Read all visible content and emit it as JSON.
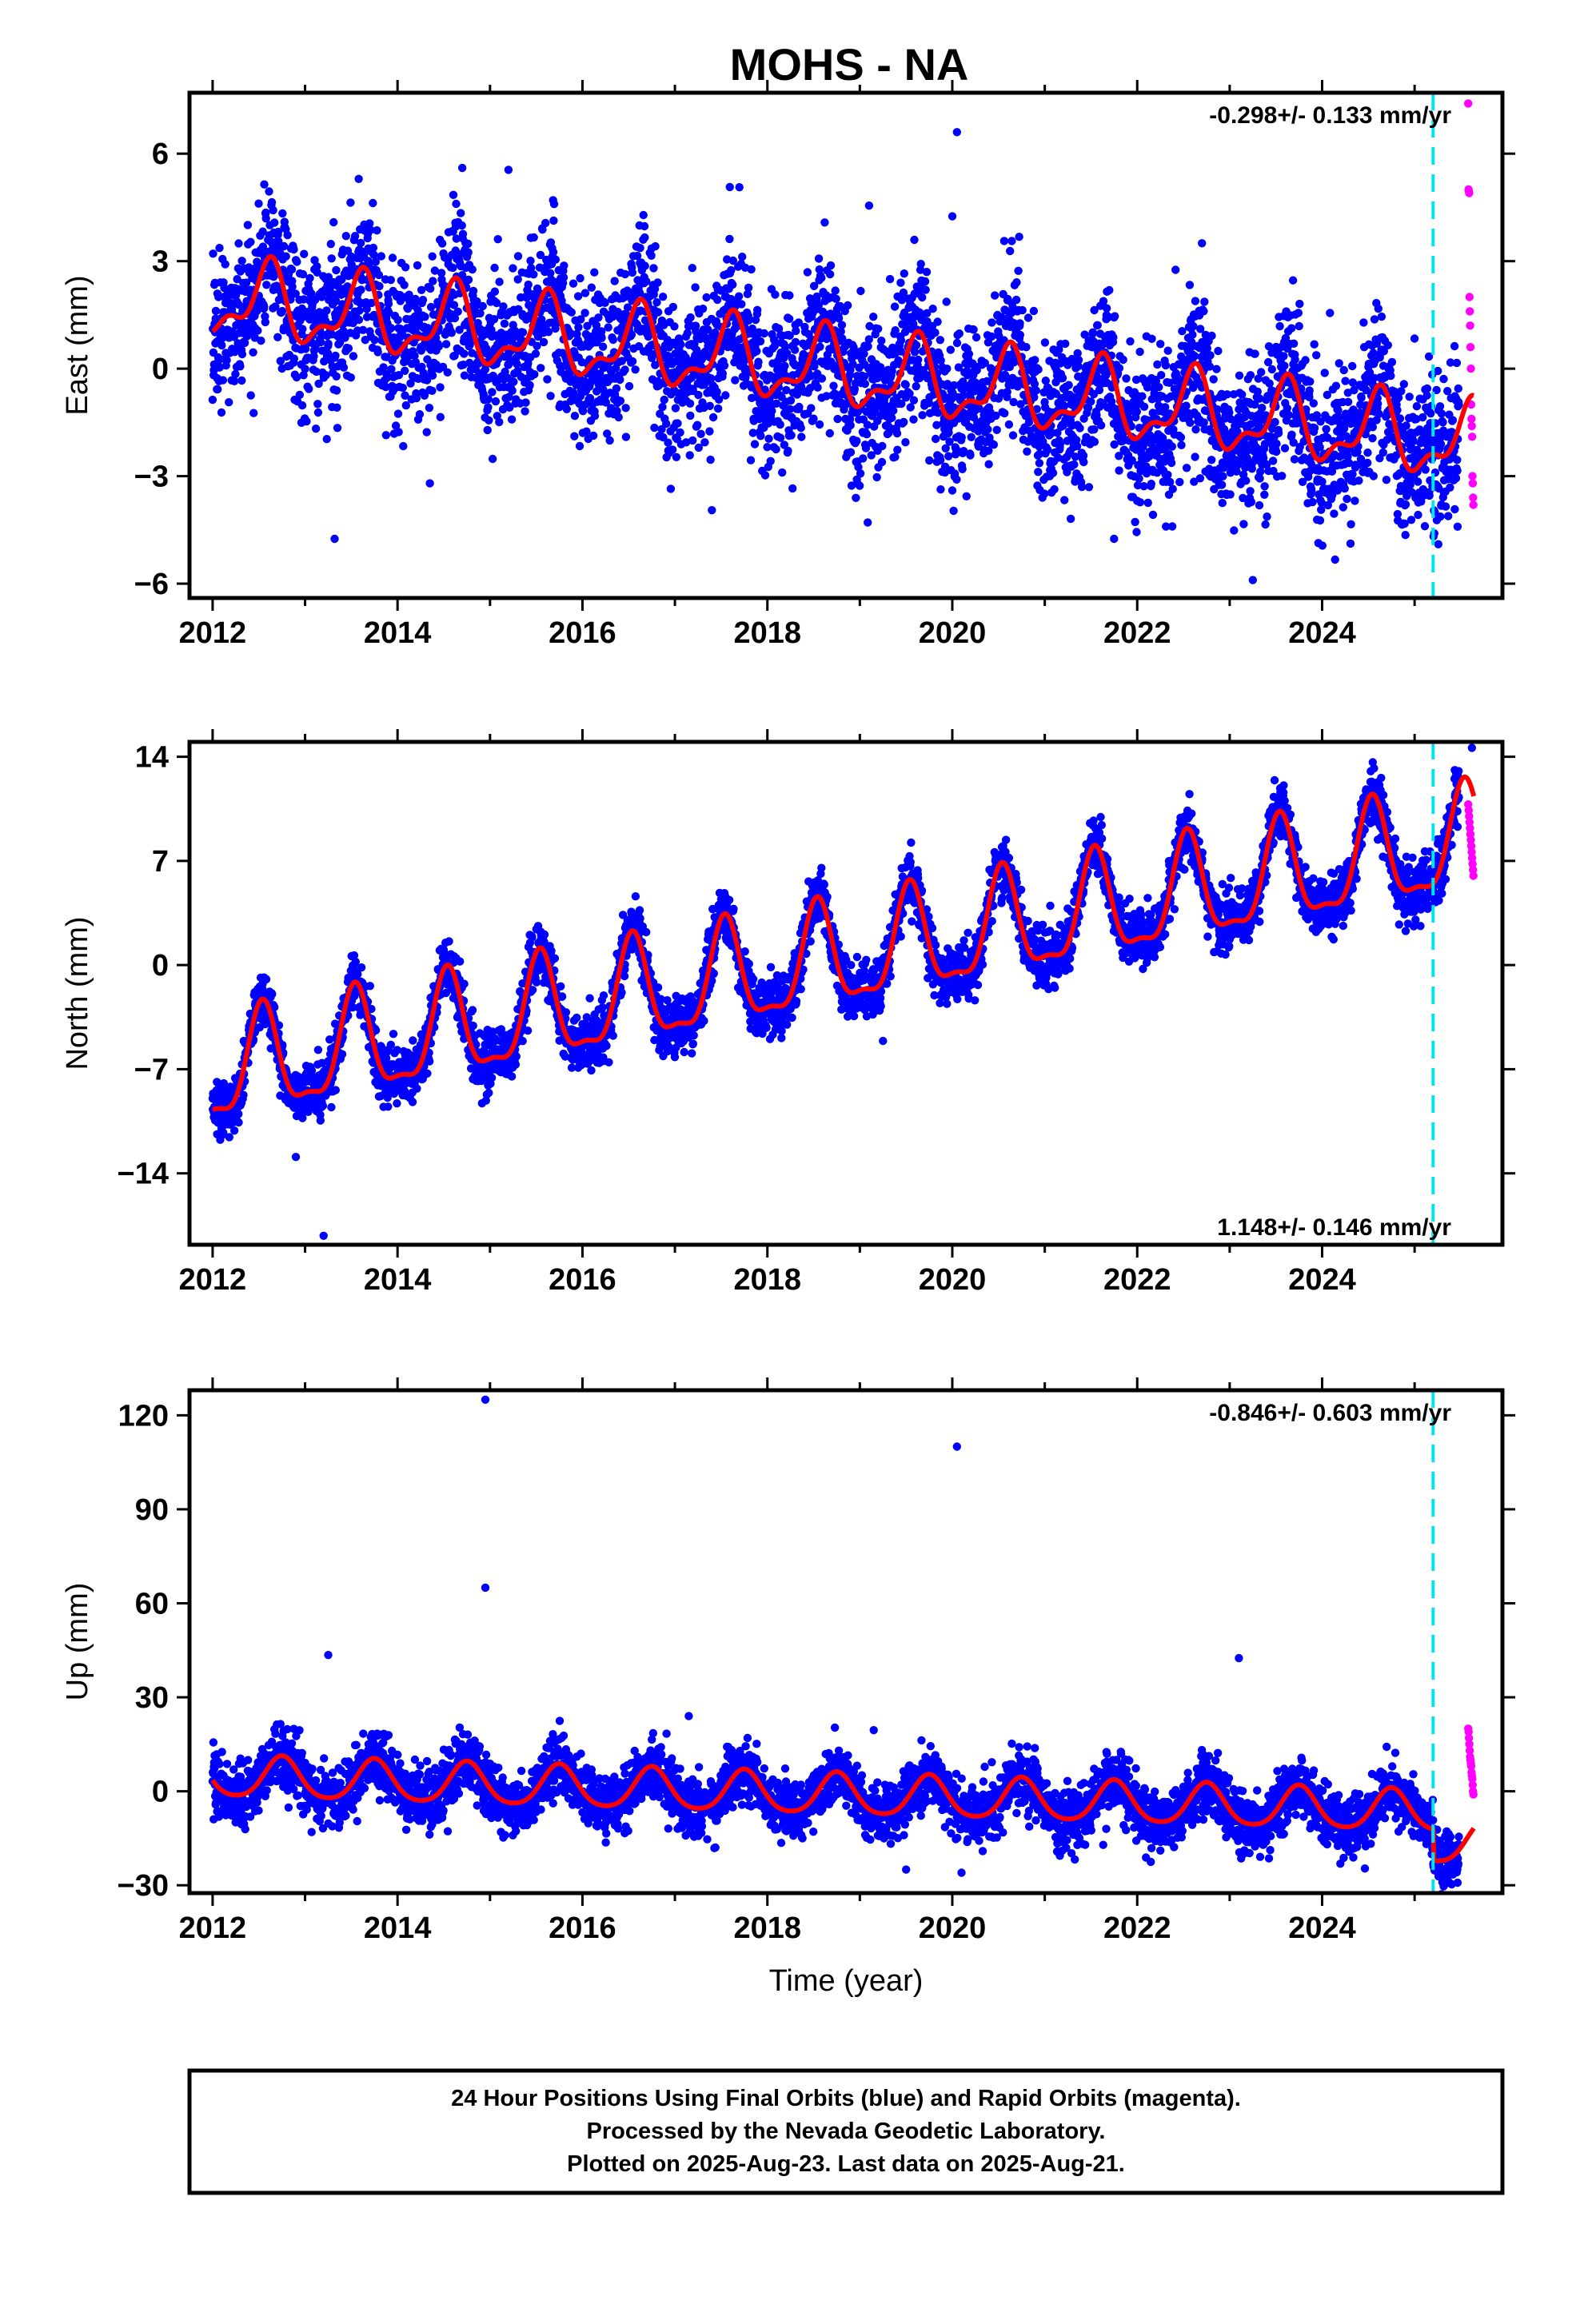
{
  "title": "MOHS - NA",
  "footer": {
    "lines": [
      "24 Hour Positions Using Final Orbits (blue) and Rapid Orbits (magenta).",
      "Processed by the Nevada Geodetic Laboratory.",
      "Plotted on 2025-Aug-23. Last data on 2025-Aug-21."
    ]
  },
  "colors": {
    "final_orbits": "#0000ff",
    "rapid_orbits": "#ff00ff",
    "model_fit": "#ff0000",
    "equipment_change_line": "#00e5ee"
  },
  "chart_data": [
    {
      "type": "scatter",
      "component": "East",
      "ylabel": "East (mm)",
      "xlabel": "",
      "xlim": [
        2011.75,
        2025.95
      ],
      "ylim": [
        -6.4,
        7.7
      ],
      "x_ticks": [
        2012,
        2014,
        2016,
        2018,
        2020,
        2022,
        2024
      ],
      "x_tick_labels": [
        "2012",
        "2014",
        "2016",
        "2018",
        "2020",
        "2022",
        "2024"
      ],
      "y_ticks": [
        -6,
        -3,
        0,
        3,
        6
      ],
      "y_tick_labels": [
        "−6",
        "−3",
        "0",
        "3",
        "6"
      ],
      "rate_label": "-0.298+/- 0.133 mm/yr",
      "rate_label_position": "top-right",
      "equipment_change_year": 2025.2,
      "final_span": [
        2012.0,
        2025.48
      ],
      "rapid_span": [
        2025.48,
        2025.64
      ],
      "model": {
        "offset": 1.95,
        "trend": -0.298,
        "annual_amp": 0.95,
        "annual_phase_year": 0.6,
        "semiannual_amp": 0.45,
        "semiannual_phase_year": 0.15,
        "step_at_change": 0.0
      },
      "scatter_sd": 1.05,
      "outliers": [
        {
          "x": 2013.32,
          "y": -4.75
        },
        {
          "x": 2020.05,
          "y": 6.6
        },
        {
          "x": 2020.0,
          "y": 4.25
        },
        {
          "x": 2019.1,
          "y": 4.55
        },
        {
          "x": 2017.4,
          "y": -3.95
        },
        {
          "x": 2020.0,
          "y": -3.4
        },
        {
          "x": 2023.25,
          "y": -5.9
        },
        {
          "x": 2021.75,
          "y": -4.75
        },
        {
          "x": 2022.7,
          "y": 3.5
        },
        {
          "x": 2014.35,
          "y": -3.2
        },
        {
          "x": 2014.7,
          "y": 5.6
        },
        {
          "x": 2015.2,
          "y": 5.55
        }
      ],
      "rapid_points": [
        7.4,
        5.0,
        4.95,
        4.9,
        2.0,
        1.6,
        1.2,
        0.6,
        0.0,
        -1.0,
        -1.4,
        -1.6,
        -1.9,
        -3.0,
        -3.2,
        -3.6,
        -3.8
      ]
    },
    {
      "type": "scatter",
      "component": "North",
      "ylabel": "North (mm)",
      "xlabel": "",
      "xlim": [
        2011.75,
        2025.95
      ],
      "ylim": [
        -18.8,
        15.0
      ],
      "x_ticks": [
        2012,
        2014,
        2016,
        2018,
        2020,
        2022,
        2024
      ],
      "x_tick_labels": [
        "2012",
        "2014",
        "2016",
        "2018",
        "2020",
        "2022",
        "2024"
      ],
      "y_ticks": [
        -14,
        -7,
        0,
        7,
        14
      ],
      "y_tick_labels": [
        "−14",
        "−7",
        "0",
        "7",
        "14"
      ],
      "rate_label": "1.148+/- 0.146 mm/yr",
      "rate_label_position": "bottom-right",
      "equipment_change_year": 2025.2,
      "final_span": [
        2012.0,
        2025.48
      ],
      "rapid_span": [
        2025.48,
        2025.64
      ],
      "model": {
        "offset": -7.4,
        "trend": 1.148,
        "annual_amp": 3.4,
        "annual_phase_year": 0.54,
        "semiannual_amp": 1.1,
        "semiannual_phase_year": 0.04,
        "step_at_change": 0.0
      },
      "scatter_sd": 0.95,
      "outliers": [
        {
          "x": 2013.2,
          "y": -18.2
        },
        {
          "x": 2012.9,
          "y": -12.9
        },
        {
          "x": 2012.1,
          "y": -11.4
        },
        {
          "x": 2019.25,
          "y": -5.1
        },
        {
          "x": 2025.62,
          "y": 14.6
        }
      ],
      "rapid_points": [
        10.8,
        10.4,
        10.0,
        9.6,
        9.2,
        8.8,
        8.4,
        8.0,
        7.6,
        7.2,
        6.8,
        6.4,
        6.0
      ]
    },
    {
      "type": "scatter",
      "component": "Up",
      "ylabel": "Up (mm)",
      "xlabel": "Time (year)",
      "xlim": [
        2011.75,
        2025.95
      ],
      "ylim": [
        -32.5,
        128.0
      ],
      "x_ticks": [
        2012,
        2014,
        2016,
        2018,
        2020,
        2022,
        2024
      ],
      "x_tick_labels": [
        "2012",
        "2014",
        "2016",
        "2018",
        "2020",
        "2022",
        "2024"
      ],
      "y_ticks": [
        -30,
        0,
        30,
        60,
        90,
        120
      ],
      "y_tick_labels": [
        "−30",
        "0",
        "30",
        "60",
        "90",
        "120"
      ],
      "rate_label": "-0.846+/- 0.603 mm/yr",
      "rate_label_position": "top-right",
      "equipment_change_year": 2025.2,
      "final_span": [
        2012.0,
        2025.48
      ],
      "rapid_span": [
        2025.48,
        2025.64
      ],
      "model": {
        "offset": 4.5,
        "trend": -0.846,
        "annual_amp": 6.5,
        "annual_phase_year": 0.75,
        "semiannual_amp": 1.0,
        "semiannual_phase_year": 0.25,
        "step_at_change": -10.0
      },
      "scatter_sd": 4.6,
      "outliers": [
        {
          "x": 2014.95,
          "y": 125.0
        },
        {
          "x": 2020.05,
          "y": 110.0
        },
        {
          "x": 2014.95,
          "y": 65.0
        },
        {
          "x": 2013.25,
          "y": 43.5
        },
        {
          "x": 2023.1,
          "y": 42.5
        },
        {
          "x": 2017.15,
          "y": 24.0
        },
        {
          "x": 2019.15,
          "y": 19.5
        },
        {
          "x": 2020.1,
          "y": -26.0
        },
        {
          "x": 2019.5,
          "y": -25.0
        }
      ],
      "rapid_points": [
        20.0,
        19.0,
        17.0,
        15.0,
        13.0,
        11.0,
        10.0,
        9.0,
        8.0,
        6.0,
        5.0,
        4.0,
        2.0,
        0.0,
        -1.0
      ]
    }
  ]
}
